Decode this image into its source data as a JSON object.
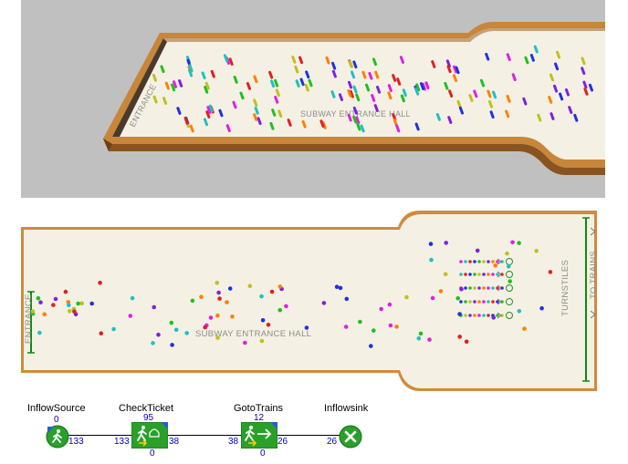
{
  "view3d": {
    "hall_label": "SUBWAY ENTRANCE HALL",
    "entrance_label": "ENTRANCE",
    "colors": {
      "background": "#c0c0c0",
      "floor": "#f4f1e4",
      "wall_top": "#c8863a",
      "wall_side": "#8a5420"
    }
  },
  "view2d": {
    "hall_label": "SUBWAY ENTRANCE HALL",
    "entrance_label": "ENTRANCE",
    "turnstiles_label": "TURNSTILES",
    "to_trains_label": "TO TRAINS",
    "colors": {
      "floor": "#f4f1e4",
      "wall": "#d28a3c",
      "line": "#0f8a0f"
    }
  },
  "flowchart": {
    "blocks": [
      {
        "name": "InflowSource",
        "top": "0",
        "in": "",
        "out": "133",
        "bottom": "",
        "icon": "walking-person-icon"
      },
      {
        "name": "CheckTicket",
        "top": "95",
        "in": "133",
        "out": "38",
        "bottom": "0",
        "icon": "ticket-check-icon"
      },
      {
        "name": "GotoTrains",
        "top": "12",
        "in": "38",
        "out": "26",
        "bottom": "0",
        "icon": "walk-arrow-icon"
      },
      {
        "name": "Inflowsink",
        "top": "",
        "in": "26",
        "out": "",
        "bottom": "",
        "icon": "sink-x-icon"
      }
    ]
  }
}
